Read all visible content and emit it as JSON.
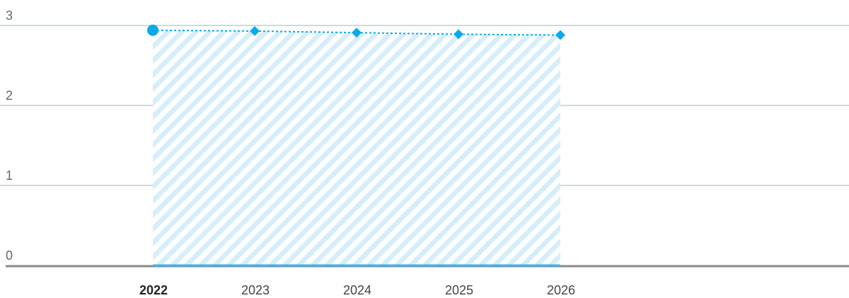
{
  "chart_data": {
    "type": "area",
    "title": "",
    "xlabel": "",
    "ylabel": "",
    "categories": [
      "2022",
      "2023",
      "2024",
      "2025",
      "2026"
    ],
    "highlight_category": "2022",
    "series": [
      {
        "values": [
          2.94,
          2.93,
          2.91,
          2.89,
          2.88
        ],
        "markers": [
          "circle",
          "diamond",
          "diamond",
          "diamond",
          "diamond"
        ],
        "line_style": "dotted",
        "fill": "hatched"
      }
    ],
    "ylim": [
      0,
      3
    ],
    "yticks": [
      "0",
      "1",
      "2",
      "3"
    ],
    "grid": true,
    "legend": "none",
    "colors": {
      "series": "#0ba9ec",
      "fill_stripe": "#d6eefa",
      "grid": "#c5dde6",
      "axis": "#888888",
      "baseline": "#3db4ea"
    }
  }
}
